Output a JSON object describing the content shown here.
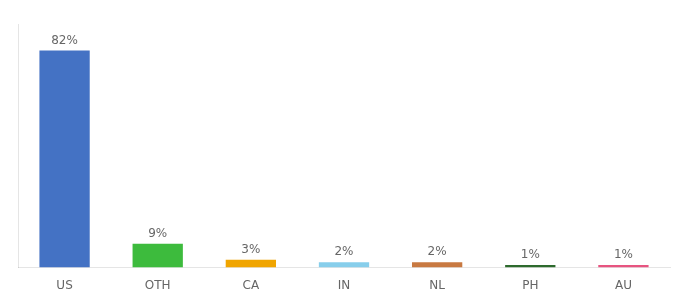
{
  "chart_data": {
    "type": "bar",
    "categories": [
      "US",
      "OTH",
      "CA",
      "IN",
      "NL",
      "PH",
      "AU"
    ],
    "values": [
      82,
      9,
      3,
      2,
      2,
      1,
      1
    ],
    "value_labels": [
      "82%",
      "9%",
      "3%",
      "2%",
      "2%",
      "1%",
      "1%"
    ],
    "colors": [
      "#4472c4",
      "#3dbb3d",
      "#f0a500",
      "#87ceeb",
      "#c87941",
      "#2d6a2d",
      "#e75480"
    ],
    "ylim": [
      0,
      92
    ],
    "data_labels": true,
    "tick_labels": "x",
    "grid": false
  }
}
